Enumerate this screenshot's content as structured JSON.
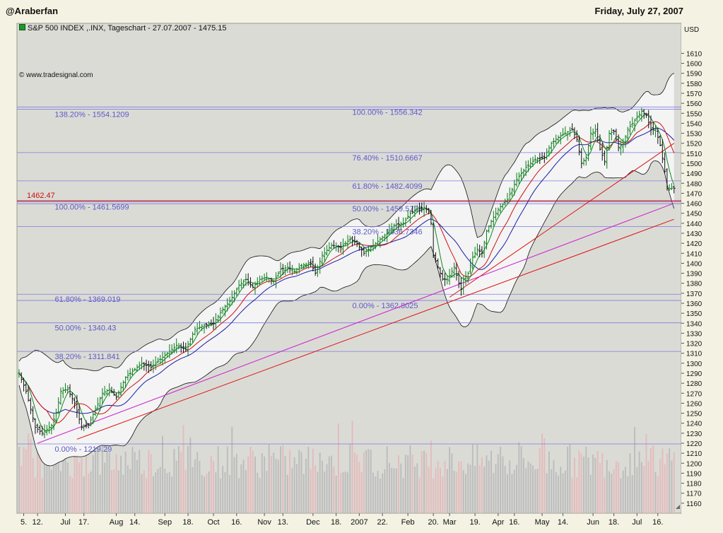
{
  "header": {
    "author": "@Araberfan",
    "date": "Friday, July 27, 2007"
  },
  "chart_data": {
    "type": "line",
    "title": "S&P 500 INDEX ,.INX, Tageschart - 27.07.2007 - 1475.15",
    "source": "© www.tradesignal.com",
    "currency": "USD",
    "ylim": [
      1150,
      1620
    ],
    "y_ticks": [
      1160,
      1170,
      1180,
      1190,
      1200,
      1210,
      1220,
      1230,
      1240,
      1250,
      1260,
      1270,
      1280,
      1290,
      1300,
      1310,
      1320,
      1330,
      1340,
      1350,
      1360,
      1370,
      1380,
      1390,
      1400,
      1410,
      1420,
      1430,
      1440,
      1450,
      1460,
      1470,
      1480,
      1490,
      1500,
      1510,
      1520,
      1530,
      1540,
      1550,
      1560,
      1570,
      1580,
      1590,
      1600,
      1610
    ],
    "x_labels": [
      {
        "label": "5.",
        "i": 2
      },
      {
        "label": "12.",
        "i": 8
      },
      {
        "label": "Jul",
        "i": 20
      },
      {
        "label": "17.",
        "i": 28
      },
      {
        "label": "Aug",
        "i": 42
      },
      {
        "label": "14.",
        "i": 50
      },
      {
        "label": "Sep",
        "i": 63
      },
      {
        "label": "18.",
        "i": 73
      },
      {
        "label": "Oct",
        "i": 84
      },
      {
        "label": "16.",
        "i": 94
      },
      {
        "label": "Nov",
        "i": 106
      },
      {
        "label": "13.",
        "i": 114
      },
      {
        "label": "Dec",
        "i": 127
      },
      {
        "label": "18.",
        "i": 137
      },
      {
        "label": "2007",
        "i": 147
      },
      {
        "label": "22.",
        "i": 157
      },
      {
        "label": "Feb",
        "i": 168
      },
      {
        "label": "20.",
        "i": 179
      },
      {
        "label": "Mar",
        "i": 186
      },
      {
        "label": "19.",
        "i": 197
      },
      {
        "label": "Apr",
        "i": 207
      },
      {
        "label": "16.",
        "i": 214
      },
      {
        "label": "May",
        "i": 226
      },
      {
        "label": "14.",
        "i": 235
      },
      {
        "label": "Jun",
        "i": 248
      },
      {
        "label": "18.",
        "i": 257
      },
      {
        "label": "Jul",
        "i": 267
      },
      {
        "label": "16.",
        "i": 276
      }
    ],
    "close_anchors": [
      [
        0,
        1290
      ],
      [
        3,
        1272
      ],
      [
        7,
        1236
      ],
      [
        10,
        1230
      ],
      [
        14,
        1238
      ],
      [
        16,
        1250
      ],
      [
        18,
        1272
      ],
      [
        21,
        1274
      ],
      [
        24,
        1260
      ],
      [
        27,
        1236
      ],
      [
        30,
        1238
      ],
      [
        33,
        1254
      ],
      [
        36,
        1270
      ],
      [
        39,
        1274
      ],
      [
        42,
        1266
      ],
      [
        46,
        1286
      ],
      [
        50,
        1294
      ],
      [
        53,
        1300
      ],
      [
        57,
        1296
      ],
      [
        60,
        1302
      ],
      [
        64,
        1310
      ],
      [
        68,
        1318
      ],
      [
        72,
        1314
      ],
      [
        76,
        1334
      ],
      [
        80,
        1338
      ],
      [
        84,
        1340
      ],
      [
        88,
        1354
      ],
      [
        91,
        1362
      ],
      [
        95,
        1378
      ],
      [
        98,
        1384
      ],
      [
        101,
        1376
      ],
      [
        104,
        1384
      ],
      [
        107,
        1386
      ],
      [
        110,
        1382
      ],
      [
        113,
        1394
      ],
      [
        116,
        1396
      ],
      [
        119,
        1392
      ],
      [
        122,
        1398
      ],
      [
        126,
        1400
      ],
      [
        128,
        1390
      ],
      [
        131,
        1408
      ],
      [
        135,
        1418
      ],
      [
        139,
        1416
      ],
      [
        143,
        1424
      ],
      [
        146,
        1420
      ],
      [
        149,
        1410
      ],
      [
        152,
        1416
      ],
      [
        156,
        1424
      ],
      [
        159,
        1430
      ],
      [
        162,
        1438
      ],
      [
        166,
        1440
      ],
      [
        169,
        1450
      ],
      [
        172,
        1454
      ],
      [
        175,
        1456
      ],
      [
        177,
        1452
      ],
      [
        178,
        1440
      ],
      [
        179,
        1408
      ],
      [
        181,
        1396
      ],
      [
        183,
        1384
      ],
      [
        185,
        1384
      ],
      [
        188,
        1396
      ],
      [
        190,
        1380
      ],
      [
        191,
        1374
      ],
      [
        192,
        1384
      ],
      [
        194,
        1390
      ],
      [
        196,
        1406
      ],
      [
        198,
        1414
      ],
      [
        200,
        1410
      ],
      [
        202,
        1432
      ],
      [
        204,
        1442
      ],
      [
        207,
        1454
      ],
      [
        211,
        1464
      ],
      [
        215,
        1484
      ],
      [
        219,
        1496
      ],
      [
        223,
        1504
      ],
      [
        227,
        1506
      ],
      [
        230,
        1520
      ],
      [
        233,
        1526
      ],
      [
        236,
        1530
      ],
      [
        239,
        1534
      ],
      [
        241,
        1524
      ],
      [
        243,
        1500
      ],
      [
        245,
        1506
      ],
      [
        247,
        1530
      ],
      [
        249,
        1532
      ],
      [
        251,
        1514
      ],
      [
        253,
        1502
      ],
      [
        255,
        1530
      ],
      [
        257,
        1532
      ],
      [
        259,
        1516
      ],
      [
        261,
        1520
      ],
      [
        263,
        1534
      ],
      [
        265,
        1540
      ],
      [
        267,
        1546
      ],
      [
        269,
        1552
      ],
      [
        271,
        1548
      ],
      [
        273,
        1534
      ],
      [
        275,
        1534
      ],
      [
        277,
        1518
      ],
      [
        279,
        1492
      ],
      [
        280,
        1475
      ]
    ],
    "series": [
      {
        "name": "S&P 500 INDEX ,.INX",
        "style": "ohlc-bars",
        "color": "#0a7a1a"
      },
      {
        "style": "ma-short",
        "color": "#0a8a1a",
        "period": 5
      },
      {
        "style": "ma-mid",
        "color": "#cc1111",
        "period": 13
      },
      {
        "style": "ma-long",
        "color": "#1a1aaa",
        "period": 21
      },
      {
        "style": "bollinger",
        "color": "#000000",
        "period": 20
      }
    ],
    "fib_levels": [
      {
        "label": "138.20% - 1554.1209",
        "value": 1554.12,
        "x0": 0,
        "x1": 283,
        "label_i": 9
      },
      {
        "label": "100.00% - 1556.342",
        "value": 1556.34,
        "x0": 0,
        "x1": 283,
        "label_i": 144
      },
      {
        "label": "76.40% - 1510.6667",
        "value": 1510.67,
        "x0": 0,
        "x1": 283,
        "label_i": 144
      },
      {
        "label": "61.80% - 1482.4099",
        "value": 1482.41,
        "x0": 0,
        "x1": 283,
        "label_i": 144
      },
      {
        "label": "50.00% - 1459.5723",
        "value": 1459.57,
        "x0": 0,
        "x1": 283,
        "label_i": 144
      },
      {
        "label": "38.20% - 1436.7346",
        "value": 1436.73,
        "x0": 0,
        "x1": 283,
        "label_i": 144
      },
      {
        "label": "100.00% - 1461.5699",
        "value": 1461.57,
        "x0": 0,
        "x1": 283,
        "label_i": 9
      },
      {
        "label": "61.80% - 1369.019",
        "value": 1369.02,
        "x0": 0,
        "x1": 283,
        "label_i": 9
      },
      {
        "label": "0.00% - 1362.8025",
        "value": 1362.8,
        "x0": 0,
        "x1": 283,
        "label_i": 144
      },
      {
        "label": "50.00% - 1340.43",
        "value": 1340.43,
        "x0": 0,
        "x1": 283,
        "label_i": 9
      },
      {
        "label": "38.20% - 1311.841",
        "value": 1311.84,
        "x0": 0,
        "x1": 283,
        "label_i": 9
      },
      {
        "label": "0.00% - 1219.29",
        "value": 1219.29,
        "x0": 0,
        "x1": 283,
        "label_i": 9
      }
    ],
    "horizontal_line": {
      "label": "1462.47",
      "value": 1462.47,
      "color": "#cc1111"
    },
    "trend_lines": [
      {
        "color": "#dd1111",
        "p1": [
          25,
          1224
        ],
        "p2": [
          283,
          1444
        ]
      },
      {
        "color": "#dd1111",
        "p1": [
          186,
          1366
        ],
        "p2": [
          283,
          1520
        ]
      },
      {
        "color": "#cc22cc",
        "p1": [
          8,
          1220
        ],
        "p2": [
          283,
          1460
        ]
      }
    ],
    "volume_axis_max": 1
  }
}
